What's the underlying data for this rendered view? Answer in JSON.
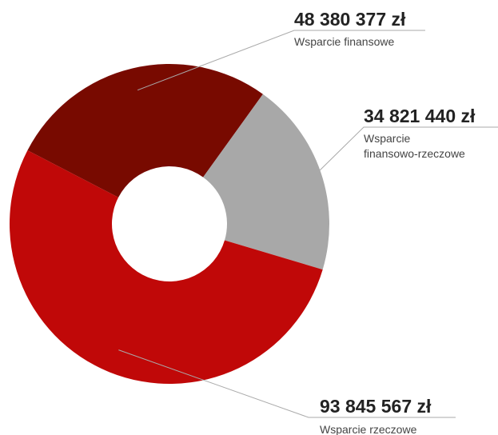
{
  "chart_data": {
    "type": "pie",
    "style": "donut",
    "legend": "none",
    "series": [
      {
        "name": "Wsparcie finansowe",
        "name_lines": [
          "Wsparcie finansowe"
        ],
        "value": 48380377,
        "value_label": "48 380 377 zł",
        "color": "#780a00"
      },
      {
        "name": "Wsparcie finansowo-rzeczowe",
        "name_lines": [
          "Wsparcie",
          "finansowo-rzeczowe"
        ],
        "value": 34821440,
        "value_label": "34 821 440 zł",
        "color": "#a8a8a8"
      },
      {
        "name": "Wsparcie rzeczowe",
        "name_lines": [
          "Wsparcie rzeczowe"
        ],
        "value": 93845567,
        "value_label": "93 845 567 zł",
        "color": "#c00808"
      }
    ],
    "connector_color": "#aaaaaa"
  }
}
